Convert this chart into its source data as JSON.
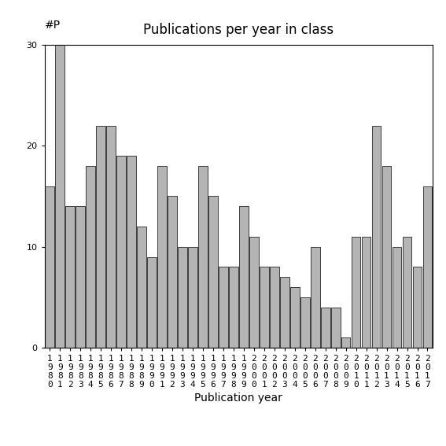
{
  "years": [
    1980,
    1981,
    1982,
    1983,
    1984,
    1985,
    1986,
    1987,
    1988,
    1989,
    1990,
    1991,
    1992,
    1993,
    1994,
    1995,
    1996,
    1997,
    1998,
    1999,
    2000,
    2001,
    2002,
    2003,
    2004,
    2005,
    2006,
    2007,
    2008,
    2009,
    2010,
    2011,
    2012,
    2013,
    2014,
    2015,
    2016,
    2017
  ],
  "values": [
    16,
    30,
    14,
    14,
    18,
    22,
    22,
    19,
    19,
    12,
    9,
    18,
    15,
    10,
    10,
    18,
    15,
    8,
    8,
    14,
    11,
    8,
    8,
    7,
    6,
    5,
    10,
    4,
    4,
    1,
    11,
    11,
    22,
    18,
    10,
    11,
    8,
    16
  ],
  "title": "Publications per year in class",
  "xlabel": "Publication year",
  "ylabel": "#P",
  "bar_color": "#b4b4b4",
  "bar_edge_color": "#000000",
  "ylim_max": 30,
  "yticks": [
    0,
    10,
    20,
    30
  ],
  "background_color": "#ffffff",
  "title_fontsize": 12,
  "label_fontsize": 10,
  "tick_fontsize": 8
}
